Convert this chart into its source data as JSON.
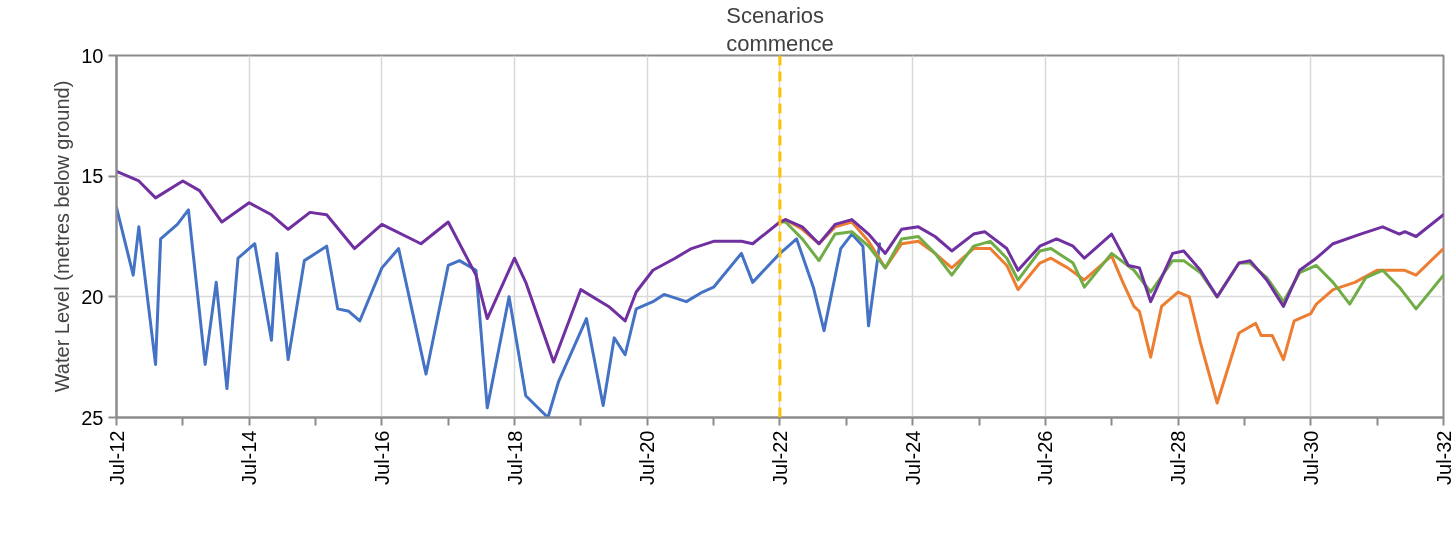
{
  "chart_data": {
    "type": "line",
    "ylabel": "Water Level (metres below ground)",
    "xlim": [
      "2012-07",
      "2032-07"
    ],
    "ylim": [
      25,
      10
    ],
    "yticks": [
      10,
      15,
      20,
      25
    ],
    "grid": true,
    "xticks": [
      {
        "value": "2012-07",
        "label": "Jul-12"
      },
      {
        "value": "2013-07",
        "label": null
      },
      {
        "value": "2014-07",
        "label": "Jul-14"
      },
      {
        "value": "2015-07",
        "label": null
      },
      {
        "value": "2016-07",
        "label": "Jul-16"
      },
      {
        "value": "2017-07",
        "label": null
      },
      {
        "value": "2018-07",
        "label": "Jul-18"
      },
      {
        "value": "2019-07",
        "label": null
      },
      {
        "value": "2020-07",
        "label": "Jul-20"
      },
      {
        "value": "2021-07",
        "label": null
      },
      {
        "value": "2022-07",
        "label": "Jul-22"
      },
      {
        "value": "2023-07",
        "label": null
      },
      {
        "value": "2024-07",
        "label": "Jul-24"
      },
      {
        "value": "2025-07",
        "label": null
      },
      {
        "value": "2026-07",
        "label": "Jul-26"
      },
      {
        "value": "2027-07",
        "label": null
      },
      {
        "value": "2028-07",
        "label": "Jul-28"
      },
      {
        "value": "2029-07",
        "label": null
      },
      {
        "value": "2030-07",
        "label": "Jul-30"
      },
      {
        "value": "2031-07",
        "label": null
      },
      {
        "value": "2032-07",
        "label": "Jul-32"
      }
    ],
    "ref_lines": [
      {
        "axis": "x",
        "value": "2022-07",
        "label": "Scenarios\ncommence",
        "color": "#ffc000",
        "line_style": "dashed"
      }
    ],
    "series": [
      {
        "color": "#4472c4",
        "x": [
          "2012-07",
          "2012-10",
          "2012-11",
          "2013-02",
          "2013-03",
          "2013-06",
          "2013-08",
          "2013-11",
          "2014-01",
          "2014-03",
          "2014-05",
          "2014-08",
          "2014-11",
          "2014-12",
          "2015-02",
          "2015-05",
          "2015-09",
          "2015-11",
          "2016-01",
          "2016-03",
          "2016-07",
          "2016-10",
          "2017-03",
          "2017-07",
          "2017-09",
          "2017-12",
          "2018-02",
          "2018-06",
          "2018-09",
          "2019-01",
          "2019-03",
          "2019-08",
          "2019-11",
          "2020-01",
          "2020-03",
          "2020-05",
          "2020-08",
          "2020-10",
          "2021-02",
          "2021-05",
          "2021-07",
          "2021-12",
          "2022-02",
          "2022-07",
          "2022-08",
          "2022-10",
          "2023-01",
          "2023-03",
          "2023-06",
          "2023-08",
          "2023-10",
          "2023-11",
          "2024-01"
        ],
        "values": [
          16.3,
          19.1,
          17.1,
          22.8,
          17.6,
          17.0,
          16.4,
          22.8,
          19.4,
          23.8,
          18.4,
          17.8,
          21.8,
          18.2,
          22.6,
          18.5,
          17.9,
          20.5,
          20.6,
          21.0,
          18.8,
          18.0,
          23.2,
          18.7,
          18.5,
          18.9,
          24.6,
          20.0,
          24.1,
          25.0,
          23.5,
          20.9,
          24.5,
          21.7,
          22.4,
          20.5,
          20.2,
          19.9,
          20.2,
          19.8,
          19.6,
          18.2,
          19.4,
          18.2,
          18.0,
          17.6,
          19.6,
          21.4,
          18.0,
          17.4,
          17.9,
          21.2,
          17.8
        ]
      },
      {
        "color": "#ed7d31",
        "x": [
          "2022-07",
          "2022-08",
          "2022-11",
          "2023-02",
          "2023-05",
          "2023-08",
          "2023-11",
          "2024-02",
          "2024-05",
          "2024-08",
          "2024-11",
          "2025-02",
          "2025-06",
          "2025-09",
          "2025-12",
          "2026-02",
          "2026-06",
          "2026-08",
          "2026-11",
          "2027-02",
          "2027-07",
          "2027-09",
          "2027-11",
          "2027-12",
          "2028-02",
          "2028-04",
          "2028-07",
          "2028-09",
          "2028-11",
          "2029-02",
          "2029-06",
          "2029-09",
          "2029-10",
          "2029-12",
          "2030-02",
          "2030-04",
          "2030-07",
          "2030-08",
          "2030-11",
          "2031-03",
          "2031-07",
          "2031-09",
          "2031-12",
          "2032-02",
          "2032-07"
        ],
        "values": [
          16.9,
          16.8,
          17.2,
          17.8,
          17.1,
          16.9,
          17.7,
          18.8,
          17.8,
          17.7,
          18.2,
          18.8,
          18.0,
          18.0,
          18.7,
          19.7,
          18.6,
          18.4,
          18.8,
          19.3,
          18.3,
          19.4,
          20.4,
          20.6,
          22.5,
          20.4,
          19.8,
          20.0,
          21.9,
          24.4,
          21.5,
          21.1,
          21.6,
          21.6,
          22.6,
          21.0,
          20.7,
          20.3,
          19.7,
          19.4,
          18.9,
          18.9,
          18.9,
          19.1,
          18.0
        ]
      },
      {
        "color": "#70ad47",
        "x": [
          "2022-07",
          "2022-08",
          "2022-11",
          "2023-02",
          "2023-05",
          "2023-08",
          "2023-11",
          "2024-02",
          "2024-05",
          "2024-08",
          "2024-11",
          "2025-02",
          "2025-06",
          "2025-09",
          "2025-12",
          "2026-02",
          "2026-06",
          "2026-08",
          "2026-12",
          "2027-02",
          "2027-07",
          "2027-11",
          "2028-02",
          "2028-06",
          "2028-08",
          "2028-11",
          "2029-02",
          "2029-06",
          "2029-08",
          "2029-11",
          "2030-02",
          "2030-05",
          "2030-08",
          "2030-11",
          "2031-02",
          "2031-05",
          "2031-08",
          "2031-11",
          "2032-02",
          "2032-07"
        ],
        "values": [
          16.9,
          16.9,
          17.6,
          18.5,
          17.4,
          17.3,
          17.9,
          18.8,
          17.6,
          17.5,
          18.2,
          19.1,
          17.9,
          17.7,
          18.4,
          19.3,
          18.1,
          18.0,
          18.6,
          19.6,
          18.2,
          18.9,
          19.8,
          18.5,
          18.5,
          19.0,
          20.0,
          18.6,
          18.6,
          19.2,
          20.2,
          19.0,
          18.7,
          19.4,
          20.3,
          19.2,
          18.9,
          19.6,
          20.5,
          19.1
        ]
      },
      {
        "color": "#7030a0",
        "x": [
          "2012-07",
          "2012-11",
          "2013-02",
          "2013-07",
          "2013-10",
          "2014-02",
          "2014-07",
          "2014-11",
          "2015-02",
          "2015-06",
          "2015-09",
          "2016-02",
          "2016-07",
          "2017-02",
          "2017-07",
          "2017-12",
          "2018-02",
          "2018-07",
          "2018-09",
          "2019-02",
          "2019-07",
          "2019-12",
          "2020-03",
          "2020-05",
          "2020-08",
          "2020-12",
          "2021-03",
          "2021-07",
          "2021-12",
          "2022-02",
          "2022-07",
          "2022-08",
          "2022-11",
          "2023-02",
          "2023-05",
          "2023-08",
          "2023-11",
          "2024-02",
          "2024-05",
          "2024-08",
          "2024-11",
          "2025-02",
          "2025-06",
          "2025-08",
          "2025-12",
          "2026-02",
          "2026-06",
          "2026-09",
          "2026-12",
          "2027-02",
          "2027-07",
          "2027-10",
          "2027-12",
          "2028-02",
          "2028-06",
          "2028-08",
          "2028-11",
          "2029-02",
          "2029-06",
          "2029-08",
          "2029-11",
          "2030-02",
          "2030-05",
          "2030-08",
          "2030-11",
          "2031-04",
          "2031-08",
          "2031-11",
          "2031-12",
          "2032-02",
          "2032-07"
        ],
        "values": [
          14.8,
          15.2,
          15.9,
          15.2,
          15.6,
          16.9,
          16.1,
          16.6,
          17.2,
          16.5,
          16.6,
          18.0,
          17.0,
          17.8,
          16.9,
          19.1,
          20.9,
          18.4,
          19.4,
          22.7,
          19.7,
          20.4,
          21.0,
          19.8,
          18.9,
          18.4,
          18.0,
          17.7,
          17.7,
          17.8,
          16.9,
          16.8,
          17.1,
          17.8,
          17.0,
          16.8,
          17.4,
          18.2,
          17.2,
          17.1,
          17.5,
          18.1,
          17.4,
          17.3,
          18.0,
          18.9,
          17.9,
          17.6,
          17.9,
          18.4,
          17.4,
          18.7,
          18.8,
          20.2,
          18.2,
          18.1,
          18.9,
          20.0,
          18.6,
          18.5,
          19.3,
          20.4,
          18.9,
          18.4,
          17.8,
          17.4,
          17.1,
          17.4,
          17.3,
          17.5,
          16.6
        ]
      }
    ]
  }
}
